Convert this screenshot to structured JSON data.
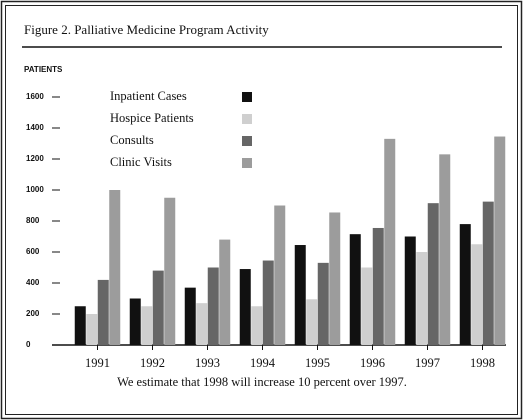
{
  "chart_data": {
    "type": "bar",
    "title": "Figure 2. Palliative Medicine Program Activity",
    "y_label": "PATIENTS",
    "note": "We estimate that 1998 will increase 10 percent over 1997.",
    "categories": [
      "1991",
      "1992",
      "1993",
      "1994",
      "1995",
      "1996",
      "1997",
      "1998"
    ],
    "series": [
      {
        "name": "Inpatient Cases",
        "color": "#111111",
        "values": [
          250,
          300,
          370,
          490,
          645,
          715,
          700,
          780
        ]
      },
      {
        "name": "Hospice Patients",
        "color": "#cfcfcf",
        "values": [
          200,
          250,
          270,
          250,
          295,
          500,
          600,
          650
        ]
      },
      {
        "name": "Consults",
        "color": "#666666",
        "values": [
          420,
          480,
          500,
          545,
          530,
          755,
          915,
          925
        ]
      },
      {
        "name": "Clinic Visits",
        "color": "#9c9c9c",
        "values": [
          1000,
          950,
          680,
          900,
          855,
          1330,
          1230,
          1345
        ]
      }
    ],
    "ylim": [
      0,
      1600
    ],
    "yticks": [
      0,
      200,
      400,
      600,
      800,
      1000,
      1200,
      1400,
      1600
    ],
    "legend": "upper left"
  }
}
